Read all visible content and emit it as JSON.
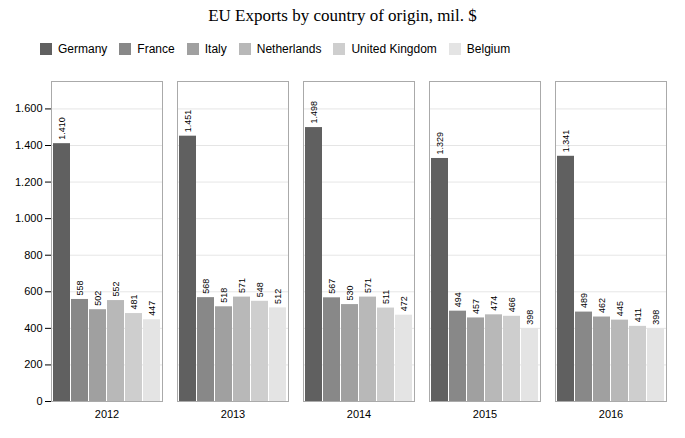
{
  "chart_data": {
    "type": "bar",
    "title": "EU Exports by country of origin, mil. $",
    "categories": [
      "2012",
      "2013",
      "2014",
      "2015",
      "2016"
    ],
    "series": [
      {
        "name": "Germany",
        "color": "#606060",
        "values": [
          1410,
          1451,
          1498,
          1329,
          1341
        ],
        "value_labels": [
          "1.410",
          "1.451",
          "1.498",
          "1.329",
          "1.341"
        ]
      },
      {
        "name": "France",
        "color": "#888888",
        "values": [
          558,
          568,
          567,
          494,
          489
        ]
      },
      {
        "name": "Italy",
        "color": "#a0a0a0",
        "values": [
          502,
          518,
          530,
          457,
          462
        ]
      },
      {
        "name": "Netherlands",
        "color": "#b8b8b8",
        "values": [
          552,
          571,
          571,
          474,
          445
        ]
      },
      {
        "name": "United Kingdom",
        "color": "#cecece",
        "values": [
          481,
          548,
          511,
          466,
          411
        ]
      },
      {
        "name": "Belgium",
        "color": "#e4e4e4",
        "values": [
          447,
          512,
          472,
          398,
          398
        ]
      }
    ],
    "ylim": [
      0,
      1750
    ],
    "yticks": [
      0,
      200,
      400,
      600,
      800,
      {
        "value": 1000,
        "label": "1.000"
      },
      {
        "value": 1200,
        "label": "1.200"
      },
      {
        "value": 1400,
        "label": "1.400"
      },
      {
        "value": 1600,
        "label": "1.600"
      }
    ],
    "grid": true,
    "legend": "top",
    "data_labels": true
  }
}
